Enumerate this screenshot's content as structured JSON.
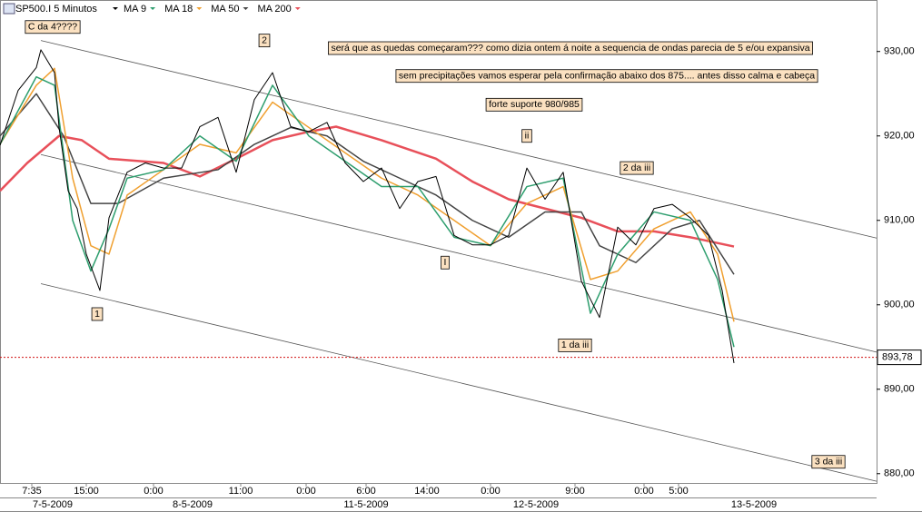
{
  "chart_data": {
    "type": "line",
    "title": "SP500.I 5 Minutos",
    "xlim": [
      0,
      193
    ],
    "ylim": [
      878.9,
      936.1
    ],
    "yticks": [
      {
        "value": 880,
        "label": "880,00"
      },
      {
        "value": 890,
        "label": "890,00"
      },
      {
        "value": 900,
        "label": "900,00"
      },
      {
        "value": 910,
        "label": "910,00"
      },
      {
        "value": 920,
        "label": "920,00"
      },
      {
        "value": 930,
        "label": "930,00"
      }
    ],
    "xticks": [
      {
        "value": 7,
        "label": "7:35"
      },
      {
        "value": 19,
        "label": "15:00"
      },
      {
        "value": 33.8,
        "label": "0:00"
      },
      {
        "value": 53,
        "label": "11:00"
      },
      {
        "value": 67.4,
        "label": "0:00"
      },
      {
        "value": 80.6,
        "label": "6:00"
      },
      {
        "value": 94,
        "label": "14:00"
      },
      {
        "value": 108,
        "label": "0:00"
      },
      {
        "value": 126.6,
        "label": "9:00"
      },
      {
        "value": 141.8,
        "label": "0:00"
      },
      {
        "value": 149.4,
        "label": "5:00"
      }
    ],
    "dates": [
      {
        "value": 11.6,
        "label": "7-5-2009"
      },
      {
        "value": 42.4,
        "label": "8-5-2009"
      },
      {
        "value": 80.6,
        "label": "11-5-2009"
      },
      {
        "value": 118,
        "label": "12-5-2009"
      },
      {
        "value": 166,
        "label": "13-5-2009"
      }
    ],
    "price": {
      "color": "#000000",
      "x": [
        0,
        4,
        8,
        9,
        12,
        13,
        15,
        17,
        19,
        22,
        24,
        28,
        32,
        36,
        40,
        44,
        48,
        52,
        56,
        60,
        64,
        68,
        72,
        76,
        80,
        84,
        88,
        92,
        96,
        100,
        104,
        108,
        112,
        116,
        120,
        124,
        128,
        132,
        136,
        140,
        144,
        148,
        152,
        156,
        159,
        161.6
      ],
      "values": [
        918.9,
        925.4,
        928.1,
        930.2,
        927.5,
        921,
        913.5,
        911.4,
        906,
        901.7,
        910.3,
        915.7,
        916.8,
        916.2,
        916.2,
        921.1,
        922.2,
        915.7,
        924.3,
        927.5,
        921.1,
        920.5,
        921.6,
        916.8,
        914.6,
        916.2,
        911.4,
        914.6,
        915.2,
        908.2,
        907.1,
        907.1,
        908.2,
        916.2,
        912.5,
        915.7,
        902.8,
        898.5,
        909.2,
        907.1,
        911.4,
        911.9,
        910.3,
        908.2,
        901.7,
        893.1
      ]
    },
    "series": [
      {
        "name": "MA 9",
        "color": "#2e9e6e",
        "x": [
          0,
          8,
          12,
          16,
          20,
          24,
          28,
          36,
          44,
          52,
          60,
          68,
          76,
          84,
          92,
          100,
          108,
          116,
          124,
          130,
          136,
          144,
          152,
          158,
          161.6
        ],
        "values": [
          919,
          927,
          926,
          910,
          904,
          909,
          915,
          916,
          920,
          917,
          926,
          920,
          917,
          914,
          914,
          908,
          907,
          914,
          915,
          899,
          906,
          911,
          910,
          903,
          895
        ]
      },
      {
        "name": "MA 18",
        "color": "#f0a030",
        "x": [
          0,
          8,
          12,
          16,
          20,
          24,
          28,
          36,
          44,
          52,
          60,
          68,
          76,
          84,
          92,
          100,
          108,
          116,
          124,
          130,
          136,
          144,
          152,
          158,
          161.6
        ],
        "values": [
          919,
          926,
          928,
          915,
          907,
          906,
          913,
          916,
          919,
          918,
          924,
          921,
          918,
          915,
          913,
          910,
          907,
          912,
          914,
          903,
          904,
          909,
          911,
          906,
          898
        ]
      },
      {
        "name": "MA 50",
        "color": "#444444",
        "x": [
          0,
          8,
          14,
          20,
          26,
          36,
          48,
          56,
          64,
          72,
          80,
          88,
          96,
          104,
          112,
          120,
          128,
          132,
          140,
          148,
          154,
          161.6
        ],
        "values": [
          920,
          925,
          920,
          912,
          912,
          915,
          916,
          919,
          921,
          920,
          917,
          915,
          913,
          910,
          908,
          911,
          911,
          907,
          905,
          909,
          910,
          903.6
        ]
      },
      {
        "name": "MA 200",
        "color": "#e8505a",
        "x": [
          0,
          6,
          13,
          18,
          24,
          36,
          44,
          52,
          60,
          68,
          74,
          84,
          96,
          104,
          112,
          120,
          128,
          136,
          144,
          152,
          161.6
        ],
        "values": [
          913.5,
          916.8,
          920,
          919.5,
          917.3,
          916.8,
          915.2,
          917.3,
          919.5,
          920.5,
          921.1,
          919.5,
          917.3,
          914.6,
          912.5,
          911.4,
          910.3,
          908.7,
          908.7,
          908,
          906.9
        ]
      }
    ],
    "trendlines": [
      {
        "x": [
          9,
          193
        ],
        "values": [
          931.3,
          907.9
        ]
      },
      {
        "x": [
          9,
          193
        ],
        "values": [
          917.8,
          894.4
        ]
      },
      {
        "x": [
          9,
          193
        ],
        "values": [
          902.5,
          879.1
        ]
      }
    ],
    "last": {
      "value": 893.78,
      "label": "893,78",
      "color": "#d01010"
    },
    "annotations": [
      {
        "text": "C da 4????",
        "x": 11.6,
        "y": 932.9
      },
      {
        "text": "2",
        "x": 58.2,
        "y": 931.3
      },
      {
        "text": "será que as quedas começaram??? como dizia ontem á noite a sequencia de ondas parecia de 5 e/ou expansiva",
        "x": 125.6,
        "y": 930.4
      },
      {
        "text": "sem precipitações vamos esperar pela confirmação abaixo dos 875.... antes disso calma e cabeça",
        "x": 133.6,
        "y": 927.1
      },
      {
        "text": "forte suporte 980/985",
        "x": 117.6,
        "y": 923.7
      },
      {
        "text": "ii",
        "x": 116,
        "y": 920
      },
      {
        "text": "2 da iii",
        "x": 140.2,
        "y": 916.2
      },
      {
        "text": "I",
        "x": 98,
        "y": 905
      },
      {
        "text": "1",
        "x": 21.4,
        "y": 898.9
      },
      {
        "text": "1 da iii",
        "x": 126.6,
        "y": 895.2
      },
      {
        "text": "3 da iii",
        "x": 182.4,
        "y": 881.4
      }
    ]
  }
}
